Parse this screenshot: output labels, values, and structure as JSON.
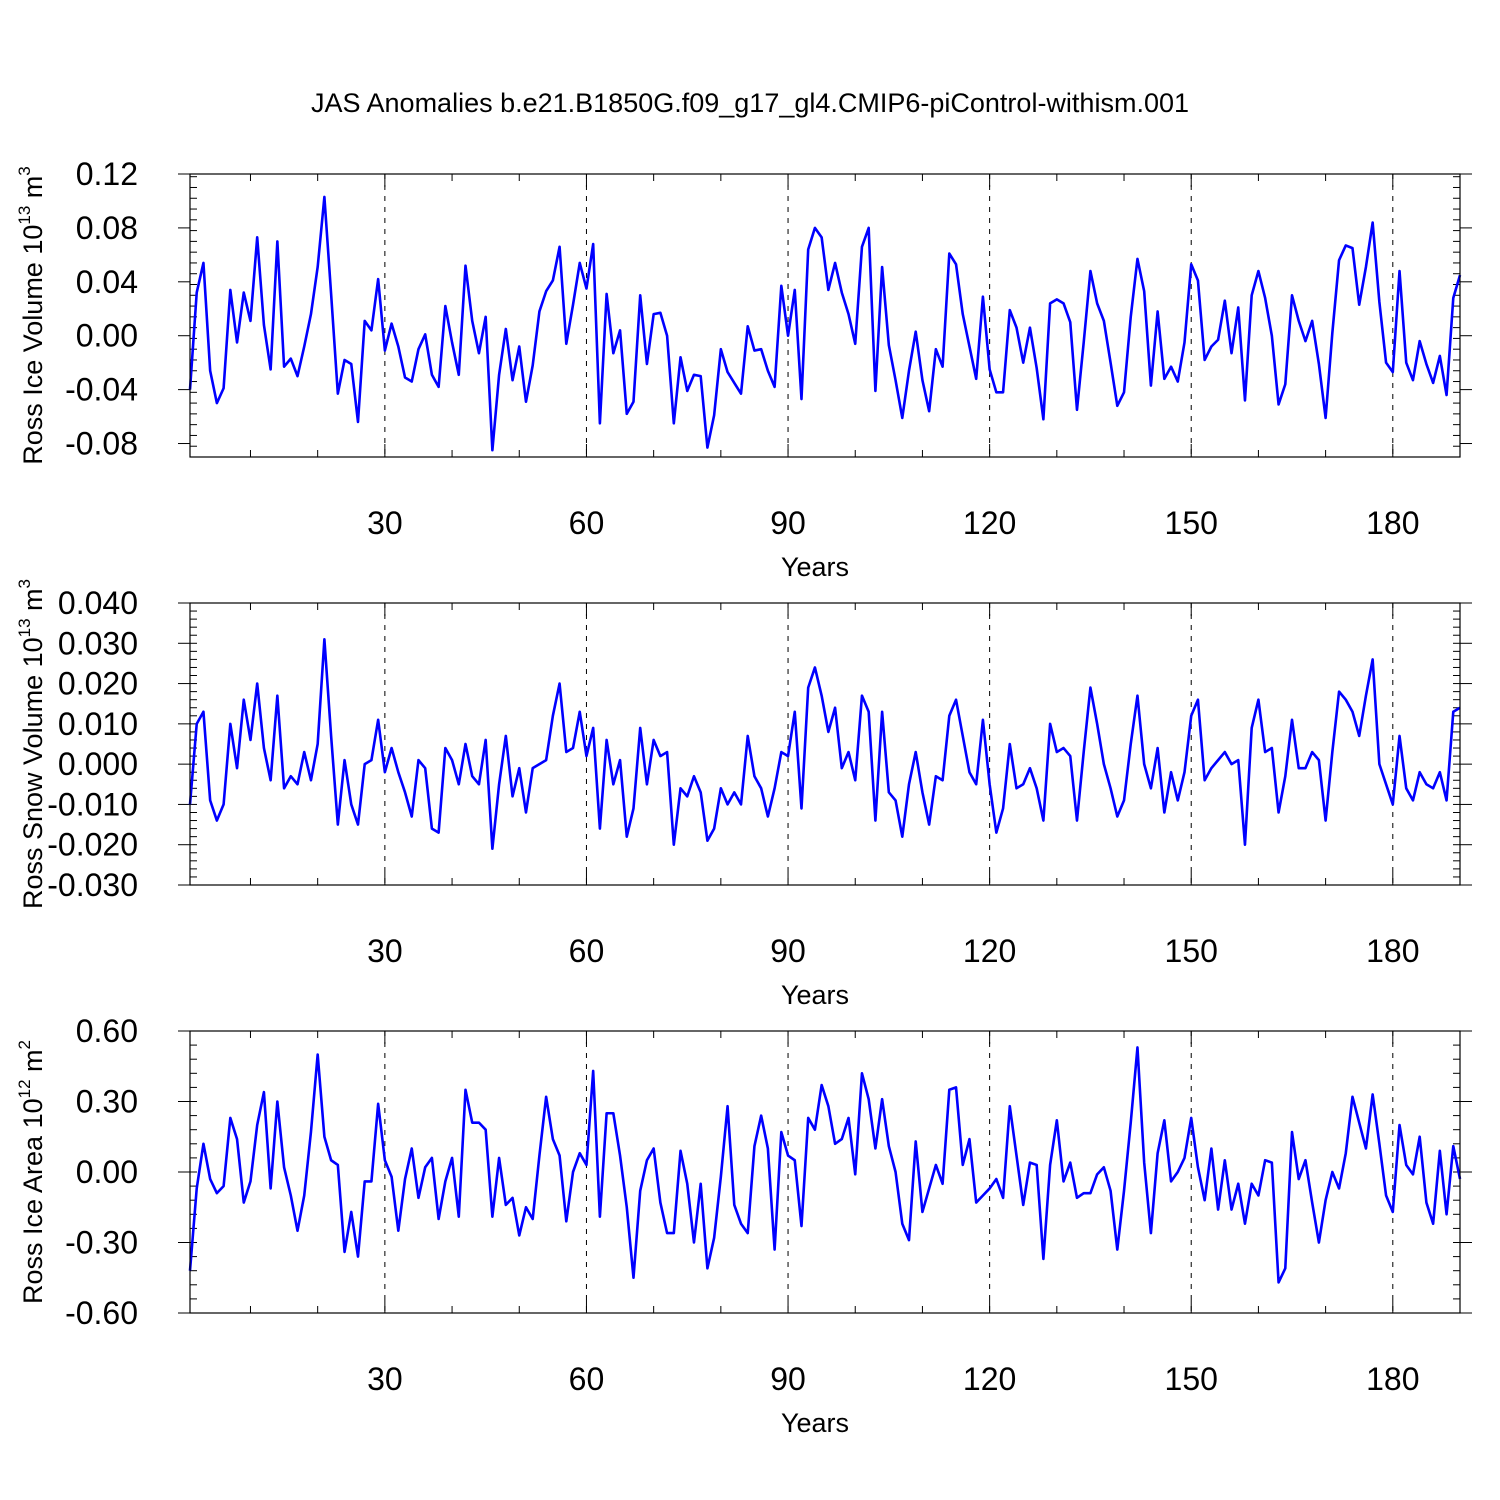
{
  "title": "JAS Anomalies b.e21.B1850G.f09_g17_gl4.CMIP6-piControl-withism.001",
  "chart_data": [
    {
      "type": "line",
      "ylabel": "Ross Ice Volume 10",
      "ylabel_sup": "13",
      "ylabel_unit": " m",
      "ylabel_unit_sup": "3",
      "xlabel": "Years",
      "xlim": [
        1,
        190
      ],
      "ylim": [
        -0.09,
        0.12
      ],
      "yticks": [
        -0.08,
        -0.04,
        0.0,
        0.04,
        0.08,
        0.12
      ],
      "ytick_labels": [
        "-0.08",
        "-0.04",
        "0.00",
        "0.04",
        "0.08",
        "0.12"
      ],
      "xticks": [
        30,
        60,
        90,
        120,
        150,
        180
      ],
      "xtick_labels": [
        "30",
        "60",
        "90",
        "120",
        "150",
        "180"
      ],
      "color": "#0000ff",
      "values": [
        -0.04,
        0.032,
        0.054,
        -0.026,
        -0.05,
        -0.039,
        0.034,
        -0.005,
        0.032,
        0.011,
        0.073,
        0.008,
        -0.025,
        0.07,
        -0.023,
        -0.017,
        -0.03,
        -0.008,
        0.016,
        0.051,
        0.103,
        0.031,
        -0.043,
        -0.018,
        -0.021,
        -0.064,
        0.011,
        0.004,
        0.042,
        -0.011,
        0.009,
        -0.008,
        -0.031,
        -0.034,
        -0.01,
        0.001,
        -0.029,
        -0.038,
        0.022,
        -0.005,
        -0.029,
        0.052,
        0.011,
        -0.013,
        0.014,
        -0.085,
        -0.029,
        0.005,
        -0.033,
        -0.008,
        -0.049,
        -0.022,
        0.018,
        0.033,
        0.041,
        0.066,
        -0.006,
        0.023,
        0.054,
        0.035,
        0.068,
        -0.065,
        0.031,
        -0.013,
        0.004,
        -0.058,
        -0.049,
        0.03,
        -0.021,
        0.016,
        0.017,
        0.0,
        -0.065,
        -0.016,
        -0.041,
        -0.029,
        -0.03,
        -0.083,
        -0.059,
        -0.01,
        -0.027,
        -0.035,
        -0.043,
        0.007,
        -0.011,
        -0.01,
        -0.026,
        -0.038,
        0.037,
        0.0,
        0.034,
        -0.047,
        0.064,
        0.08,
        0.073,
        0.034,
        0.054,
        0.032,
        0.016,
        -0.006,
        0.066,
        0.08,
        -0.041,
        0.051,
        -0.007,
        -0.033,
        -0.061,
        -0.026,
        0.003,
        -0.033,
        -0.056,
        -0.01,
        -0.023,
        0.061,
        0.053,
        0.016,
        -0.008,
        -0.032,
        0.029,
        -0.025,
        -0.042,
        -0.042,
        0.019,
        0.006,
        -0.02,
        0.006,
        -0.024,
        -0.062,
        0.024,
        0.027,
        0.024,
        0.01,
        -0.055,
        -0.005,
        0.048,
        0.024,
        0.011,
        -0.02,
        -0.052,
        -0.042,
        0.014,
        0.057,
        0.033,
        -0.037,
        0.018,
        -0.032,
        -0.023,
        -0.034,
        -0.005,
        0.053,
        0.041,
        -0.018,
        -0.008,
        -0.003,
        0.026,
        -0.013,
        0.021,
        -0.048,
        0.03,
        0.048,
        0.028,
        0.0,
        -0.051,
        -0.036,
        0.03,
        0.011,
        -0.004,
        0.011,
        -0.021,
        -0.061,
        0.002,
        0.056,
        0.067,
        0.065,
        0.023,
        0.051,
        0.084,
        0.025,
        -0.02,
        -0.027,
        0.048,
        -0.02,
        -0.033,
        -0.004,
        -0.021,
        -0.035,
        -0.015,
        -0.044,
        0.028,
        0.045
      ]
    },
    {
      "type": "line",
      "ylabel": "Ross Snow Volume 10",
      "ylabel_sup": "13",
      "ylabel_unit": " m",
      "ylabel_unit_sup": "3",
      "xlabel": "Years",
      "xlim": [
        1,
        190
      ],
      "ylim": [
        -0.03,
        0.04
      ],
      "yticks": [
        -0.03,
        -0.02,
        -0.01,
        0.0,
        0.01,
        0.02,
        0.03,
        0.04
      ],
      "ytick_labels": [
        "-0.030",
        "-0.020",
        "-0.010",
        "0.000",
        "0.010",
        "0.020",
        "0.030",
        "0.040"
      ],
      "xticks": [
        30,
        60,
        90,
        120,
        150,
        180
      ],
      "xtick_labels": [
        "30",
        "60",
        "90",
        "120",
        "150",
        "180"
      ],
      "color": "#0000ff",
      "values": [
        -0.01,
        0.01,
        0.013,
        -0.009,
        -0.014,
        -0.01,
        0.01,
        -0.001,
        0.016,
        0.006,
        0.02,
        0.004,
        -0.004,
        0.017,
        -0.006,
        -0.003,
        -0.005,
        0.003,
        -0.004,
        0.005,
        0.031,
        0.007,
        -0.015,
        0.001,
        -0.01,
        -0.015,
        0.0,
        0.001,
        0.011,
        -0.002,
        0.004,
        -0.002,
        -0.007,
        -0.013,
        0.001,
        -0.001,
        -0.016,
        -0.017,
        0.004,
        0.001,
        -0.005,
        0.005,
        -0.003,
        -0.005,
        0.006,
        -0.021,
        -0.005,
        0.007,
        -0.008,
        -0.001,
        -0.012,
        -0.001,
        0.0,
        0.001,
        0.012,
        0.02,
        0.003,
        0.004,
        0.013,
        0.002,
        0.009,
        -0.016,
        0.006,
        -0.005,
        0.001,
        -0.018,
        -0.011,
        0.009,
        -0.005,
        0.006,
        0.002,
        0.003,
        -0.02,
        -0.006,
        -0.008,
        -0.003,
        -0.007,
        -0.019,
        -0.016,
        -0.006,
        -0.01,
        -0.007,
        -0.01,
        0.007,
        -0.003,
        -0.006,
        -0.013,
        -0.006,
        0.003,
        0.002,
        0.013,
        -0.011,
        0.019,
        0.024,
        0.017,
        0.008,
        0.014,
        -0.001,
        0.003,
        -0.004,
        0.017,
        0.013,
        -0.014,
        0.013,
        -0.007,
        -0.009,
        -0.018,
        -0.005,
        0.003,
        -0.007,
        -0.015,
        -0.003,
        -0.004,
        0.012,
        0.016,
        0.007,
        -0.002,
        -0.005,
        0.011,
        -0.005,
        -0.017,
        -0.011,
        0.005,
        -0.006,
        -0.005,
        -0.001,
        -0.006,
        -0.014,
        0.01,
        0.003,
        0.004,
        0.002,
        -0.014,
        0.003,
        0.019,
        0.01,
        0.0,
        -0.006,
        -0.013,
        -0.009,
        0.005,
        0.017,
        0.0,
        -0.006,
        0.004,
        -0.012,
        -0.002,
        -0.009,
        -0.002,
        0.012,
        0.016,
        -0.004,
        -0.001,
        0.001,
        0.003,
        0.0,
        0.001,
        -0.02,
        0.009,
        0.016,
        0.003,
        0.004,
        -0.012,
        -0.003,
        0.011,
        -0.001,
        -0.001,
        0.003,
        0.001,
        -0.014,
        0.003,
        0.018,
        0.016,
        0.013,
        0.007,
        0.017,
        0.026,
        0.0,
        -0.005,
        -0.01,
        0.007,
        -0.006,
        -0.009,
        -0.002,
        -0.005,
        -0.006,
        -0.002,
        -0.009,
        0.013,
        0.014
      ]
    },
    {
      "type": "line",
      "ylabel": "Ross Ice Area 10",
      "ylabel_sup": "12",
      "ylabel_unit": " m",
      "ylabel_unit_sup": "2",
      "xlabel": "Years",
      "xlim": [
        1,
        190
      ],
      "ylim": [
        -0.6,
        0.6
      ],
      "yticks": [
        -0.6,
        -0.3,
        0.0,
        0.3,
        0.6
      ],
      "ytick_labels": [
        "-0.60",
        "-0.30",
        "0.00",
        "0.30",
        "0.60"
      ],
      "xticks": [
        30,
        60,
        90,
        120,
        150,
        180
      ],
      "xtick_labels": [
        "30",
        "60",
        "90",
        "120",
        "150",
        "180"
      ],
      "color": "#0000ff",
      "values": [
        -0.42,
        -0.07,
        0.12,
        -0.03,
        -0.09,
        -0.06,
        0.23,
        0.14,
        -0.13,
        -0.04,
        0.2,
        0.34,
        -0.07,
        0.3,
        0.02,
        -0.1,
        -0.25,
        -0.1,
        0.17,
        0.5,
        0.15,
        0.05,
        0.03,
        -0.34,
        -0.17,
        -0.36,
        -0.04,
        -0.04,
        0.29,
        0.05,
        -0.02,
        -0.25,
        -0.03,
        0.1,
        -0.11,
        0.02,
        0.06,
        -0.2,
        -0.04,
        0.06,
        -0.19,
        0.35,
        0.21,
        0.21,
        0.18,
        -0.19,
        0.06,
        -0.14,
        -0.11,
        -0.27,
        -0.15,
        -0.2,
        0.07,
        0.32,
        0.14,
        0.07,
        -0.21,
        0.0,
        0.08,
        0.03,
        0.43,
        -0.19,
        0.25,
        0.25,
        0.07,
        -0.15,
        -0.45,
        -0.08,
        0.05,
        0.1,
        -0.13,
        -0.26,
        -0.26,
        0.09,
        -0.05,
        -0.3,
        -0.05,
        -0.41,
        -0.28,
        -0.02,
        0.28,
        -0.14,
        -0.22,
        -0.26,
        0.11,
        0.24,
        0.1,
        -0.33,
        0.17,
        0.07,
        0.05,
        -0.23,
        0.23,
        0.18,
        0.37,
        0.28,
        0.12,
        0.14,
        0.23,
        -0.01,
        0.42,
        0.31,
        0.1,
        0.31,
        0.11,
        0.0,
        -0.22,
        -0.29,
        0.13,
        -0.17,
        -0.07,
        0.03,
        -0.05,
        0.35,
        0.36,
        0.03,
        0.14,
        -0.13,
        -0.1,
        -0.07,
        -0.03,
        -0.11,
        0.28,
        0.07,
        -0.14,
        0.04,
        0.03,
        -0.37,
        0.03,
        0.22,
        -0.04,
        0.04,
        -0.11,
        -0.09,
        -0.09,
        -0.01,
        0.02,
        -0.08,
        -0.33,
        -0.08,
        0.21,
        0.53,
        0.04,
        -0.26,
        0.08,
        0.22,
        -0.04,
        0.0,
        0.06,
        0.23,
        0.02,
        -0.12,
        0.1,
        -0.16,
        0.05,
        -0.16,
        -0.05,
        -0.22,
        -0.05,
        -0.1,
        0.05,
        0.04,
        -0.47,
        -0.41,
        0.17,
        -0.03,
        0.05,
        -0.13,
        -0.3,
        -0.12,
        0.0,
        -0.07,
        0.08,
        0.32,
        0.21,
        0.1,
        0.33,
        0.12,
        -0.1,
        -0.17,
        0.2,
        0.03,
        -0.01,
        0.15,
        -0.13,
        -0.22,
        0.09,
        -0.18,
        0.11,
        -0.03
      ]
    }
  ]
}
